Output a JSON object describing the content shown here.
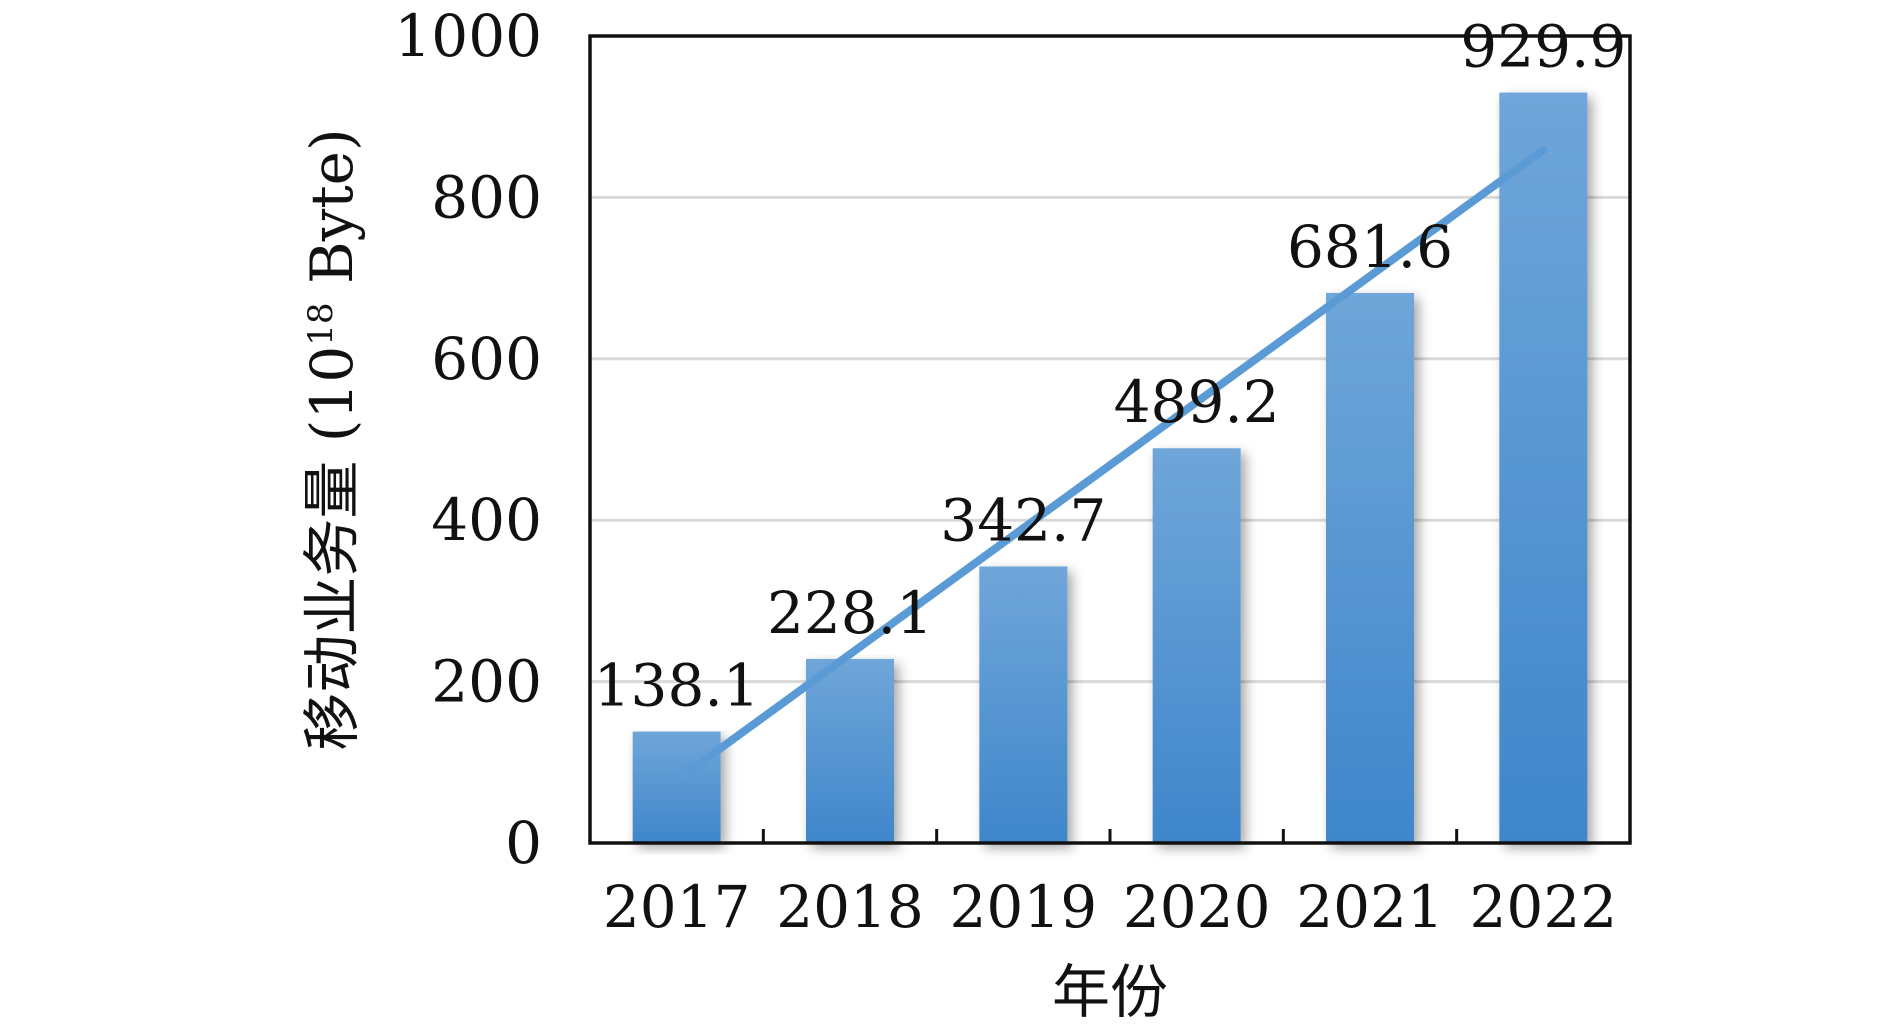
{
  "chart_data": {
    "type": "bar",
    "categories": [
      "2017",
      "2018",
      "2019",
      "2020",
      "2021",
      "2022"
    ],
    "values": [
      138.1,
      228.1,
      342.7,
      489.2,
      681.6,
      929.9
    ],
    "data_labels": [
      "138.1",
      "228.1",
      "342.7",
      "489.2",
      "681.6",
      "929.9"
    ],
    "xlabel": "年份",
    "ylabel": "移动业务量 (10",
    "ylabel_superscript": "18",
    "ylabel_suffix": " Byte)",
    "ylim": [
      0,
      1000
    ],
    "yticks": [
      0,
      200,
      400,
      600,
      800,
      1000
    ],
    "ytick_labels": [
      "0",
      "200",
      "400",
      "600",
      "800",
      "1000"
    ],
    "grid": true,
    "trendline": {
      "type": "linear",
      "visible": true
    },
    "colors": {
      "bar_top": "#6fa6d9",
      "bar_bottom": "#3f86cb",
      "trendline": "#5b9bd5",
      "grid": "#d9d9d9",
      "axis": "#111111"
    }
  }
}
